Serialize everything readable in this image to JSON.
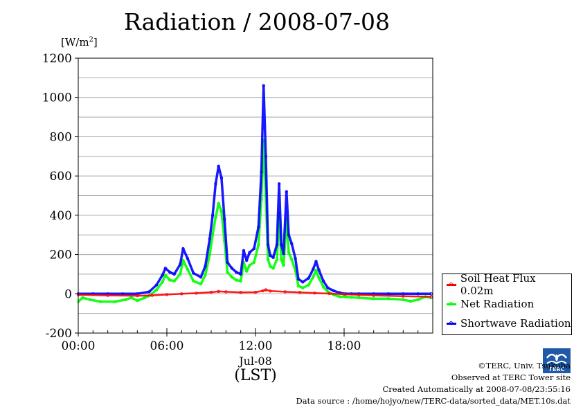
{
  "title": "Radiation / 2008-07-08",
  "unit_label": "[W/m",
  "unit_sup": "2",
  "unit_close": "]",
  "xaxis": {
    "date_label": "Jul-08",
    "zone_label": "(LST)"
  },
  "legend": [
    {
      "name": "Soil Heat Flux 0.02m",
      "color": "#ff0000"
    },
    {
      "name": "Net Radiation",
      "color": "#00ff00"
    },
    {
      "name": "Shortwave Radiation",
      "color": "#0000ff"
    }
  ],
  "credits": {
    "copyright": "©TERC, Univ. Tsukuba",
    "observed": "Observed at TERC Tower site",
    "created": "Created Automatically at 2008-07-08/23:55:16",
    "source": "Data source : /home/hojyo/new/TERC-data/sorted_data/MET.10s.dat"
  },
  "logo_text": "TERC",
  "chart_data": {
    "type": "line",
    "title": "Radiation / 2008-07-08",
    "ylabel": "[W/m2]",
    "xlabel": "(LST)",
    "xlim": [
      0,
      24
    ],
    "ylim": [
      -200,
      1200
    ],
    "yticks": [
      -200,
      0,
      200,
      400,
      600,
      800,
      1000,
      1200
    ],
    "xticks": [
      0,
      6,
      12,
      18
    ],
    "xtick_labels": [
      "00:00",
      "06:00",
      "12:00",
      "18:00"
    ],
    "grid": true,
    "legend_position": "bottom-right, outside plot",
    "series": [
      {
        "name": "Shortwave Radiation",
        "color": "#0000ff",
        "x": [
          0,
          1,
          2,
          3,
          4,
          4.8,
          5.3,
          5.7,
          5.9,
          6.2,
          6.5,
          6.9,
          7.1,
          7.4,
          7.8,
          8.3,
          8.6,
          8.9,
          9.1,
          9.3,
          9.5,
          9.7,
          9.9,
          10.1,
          10.4,
          10.7,
          11.0,
          11.2,
          11.4,
          11.6,
          11.9,
          12.2,
          12.4,
          12.55,
          12.7,
          12.85,
          13.0,
          13.2,
          13.45,
          13.6,
          13.75,
          13.9,
          14.1,
          14.25,
          14.45,
          14.7,
          14.9,
          15.2,
          15.6,
          15.9,
          16.1,
          16.3,
          16.6,
          16.9,
          17.3,
          17.7,
          18.1,
          18.5,
          19,
          20,
          21,
          22,
          23,
          23.9
        ],
        "y": [
          0,
          0,
          0,
          0,
          0,
          10,
          45,
          95,
          130,
          110,
          100,
          150,
          230,
          180,
          105,
          85,
          140,
          280,
          400,
          560,
          650,
          590,
          380,
          160,
          130,
          110,
          100,
          220,
          170,
          210,
          230,
          340,
          620,
          1060,
          700,
          250,
          195,
          185,
          250,
          560,
          250,
          205,
          520,
          300,
          255,
          180,
          75,
          60,
          80,
          125,
          165,
          120,
          65,
          30,
          15,
          5,
          0,
          0,
          0,
          0,
          0,
          0,
          0,
          0
        ]
      },
      {
        "name": "Net Radiation",
        "color": "#00ff00",
        "x": [
          0,
          0.3,
          0.8,
          1.5,
          2.5,
          3.2,
          3.6,
          4.0,
          4.5,
          4.8,
          5.3,
          5.7,
          5.9,
          6.2,
          6.5,
          6.9,
          7.1,
          7.4,
          7.8,
          8.3,
          8.6,
          8.9,
          9.1,
          9.3,
          9.5,
          9.7,
          9.9,
          10.1,
          10.4,
          10.7,
          11.0,
          11.2,
          11.4,
          11.6,
          11.9,
          12.2,
          12.4,
          12.55,
          12.7,
          12.85,
          13.0,
          13.2,
          13.45,
          13.6,
          13.75,
          13.9,
          14.1,
          14.25,
          14.45,
          14.7,
          14.9,
          15.2,
          15.6,
          15.9,
          16.1,
          16.3,
          16.6,
          16.9,
          17.3,
          17.7,
          18.1,
          18.5,
          19,
          20,
          21,
          22,
          22.5,
          23,
          23.5,
          23.9
        ],
        "y": [
          -40,
          -20,
          -30,
          -40,
          -40,
          -30,
          -20,
          -35,
          -20,
          -10,
          20,
          60,
          95,
          70,
          65,
          100,
          170,
          125,
          65,
          50,
          95,
          200,
          300,
          390,
          460,
          420,
          270,
          110,
          85,
          70,
          65,
          160,
          115,
          145,
          160,
          250,
          480,
          780,
          500,
          175,
          140,
          130,
          175,
          410,
          175,
          145,
          380,
          210,
          175,
          120,
          40,
          30,
          45,
          85,
          120,
          80,
          35,
          10,
          -5,
          -15,
          -15,
          -18,
          -20,
          -25,
          -25,
          -30,
          -38,
          -30,
          -15,
          -20
        ]
      },
      {
        "name": "Soil Heat Flux 0.02m",
        "color": "#ff0000",
        "x": [
          0,
          2,
          4,
          5,
          6,
          7,
          8,
          9,
          9.5,
          10,
          11,
          12,
          12.5,
          12.7,
          13,
          14,
          15,
          16,
          17,
          18,
          19,
          20,
          22,
          23.9
        ],
        "y": [
          -5,
          -8,
          -10,
          -8,
          -4,
          0,
          3,
          8,
          12,
          10,
          7,
          8,
          15,
          20,
          14,
          10,
          7,
          4,
          1,
          -2,
          -5,
          -8,
          -12,
          -15
        ]
      }
    ]
  }
}
